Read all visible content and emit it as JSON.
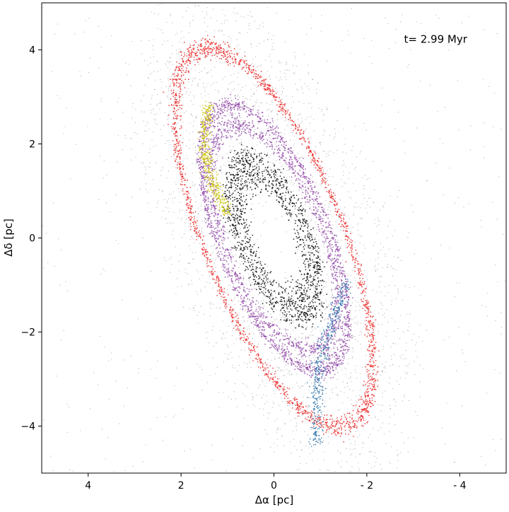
{
  "chart_data": {
    "type": "scatter",
    "title": "",
    "xlabel": "Δα [pc]",
    "ylabel": "Δδ [pc]",
    "xlim": [
      5,
      -5
    ],
    "ylim": [
      -5,
      5
    ],
    "x_ticks": [
      4,
      2,
      0,
      -2,
      -4
    ],
    "y_ticks": [
      4,
      2,
      0,
      -2,
      -4
    ],
    "x_tick_labels": [
      "4",
      "2",
      "0",
      "- 2",
      "- 4"
    ],
    "y_tick_labels": [
      "4",
      "2",
      "0",
      "−2",
      "−4"
    ],
    "grid": false,
    "legend": "none",
    "annotation": {
      "text": "t= 2.99 Myr",
      "x": -2.8,
      "y": 4.15
    },
    "structure": {
      "center": [
        0,
        0
      ],
      "tilt_deg": 68,
      "note": "elliptical tidal rings around an empty central cavity"
    },
    "series": [
      {
        "color": "#000000",
        "rings": [
          {
            "a": 1.4,
            "b": 0.55,
            "width": 0.18
          },
          {
            "a": 1.8,
            "b": 0.75,
            "width": 0.14
          }
        ]
      },
      {
        "color": "#8e44a5",
        "rings": [
          {
            "a": 2.55,
            "b": 1.05,
            "width": 0.12
          },
          {
            "a": 3.0,
            "b": 1.2,
            "width": 0.09
          }
        ]
      },
      {
        "color": "#e8211f",
        "rings": [
          {
            "a": 4.3,
            "b": 1.5,
            "width": 0.12
          }
        ]
      },
      {
        "color": "#c9c400",
        "arc": [
          {
            "x": 1.4,
            "y": 2.8
          },
          {
            "x": 1.0,
            "y": 0.5
          }
        ]
      },
      {
        "color": "#2a73ad",
        "arc": [
          {
            "x": -1.6,
            "y": -0.9
          },
          {
            "x": -0.9,
            "y": -4.4
          }
        ]
      }
    ]
  }
}
